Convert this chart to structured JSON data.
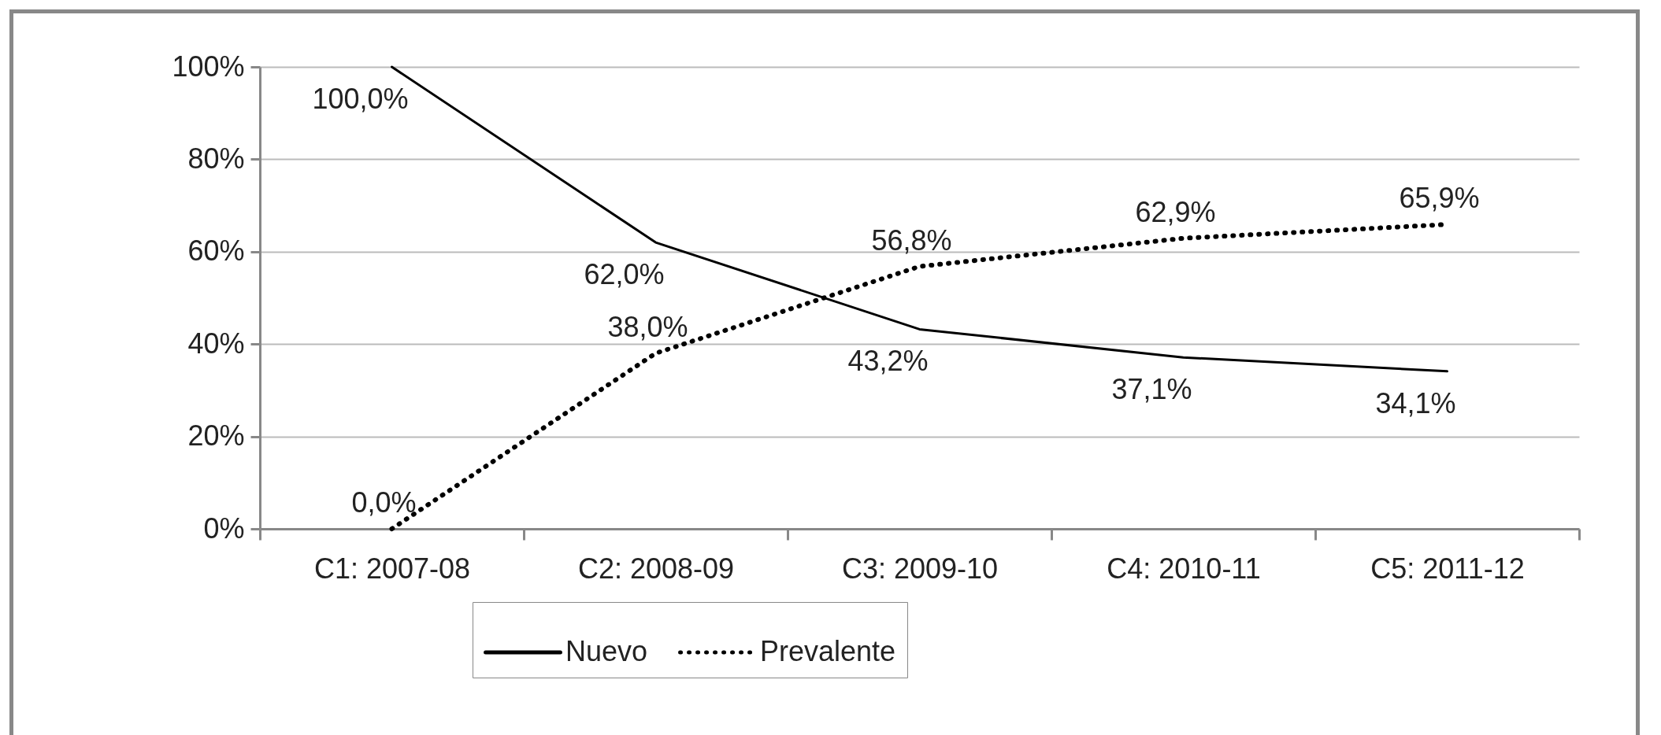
{
  "chart_data": {
    "type": "line",
    "categories": [
      "C1: 2007-08",
      "C2: 2008-09",
      "C3: 2009-10",
      "C4: 2010-11",
      "C5: 2011-12"
    ],
    "series": [
      {
        "name": "Nuevo",
        "color": "#000000",
        "line_style": "solid",
        "values": [
          100,
          62,
          43.2,
          37.1,
          34.1
        ],
        "value_labels": [
          "100,0%",
          "62,0%",
          "43,2%",
          "37,1%",
          "34,1%"
        ]
      },
      {
        "name": "Prevalente",
        "color": "#000000",
        "line_style": "dotted",
        "values": [
          0,
          38,
          56.8,
          62.9,
          65.9
        ],
        "value_labels": [
          "0,0%",
          "38,0%",
          "56,8%",
          "62,9%",
          "65,9%"
        ]
      }
    ],
    "ylim": [
      0,
      100
    ],
    "yticks": [
      {
        "value": 0,
        "label": "0%"
      },
      {
        "value": 20,
        "label": "20%"
      },
      {
        "value": 40,
        "label": "40%"
      },
      {
        "value": 60,
        "label": "60%"
      },
      {
        "value": 80,
        "label": "80%"
      },
      {
        "value": 100,
        "label": "100%"
      }
    ],
    "grid": "y",
    "legend": "bottom",
    "marker": "none"
  }
}
